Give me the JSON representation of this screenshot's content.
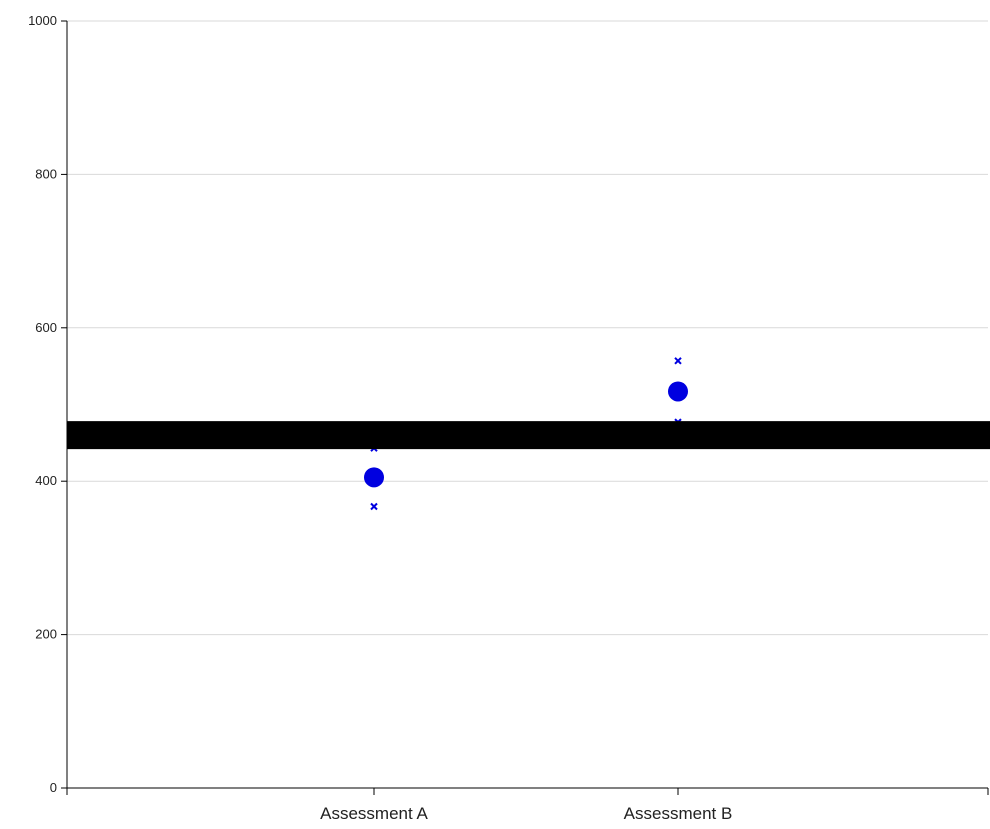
{
  "chart_data": {
    "type": "scatter",
    "categories": [
      "Assessment A",
      "Assessment B"
    ],
    "ylim": [
      0,
      1000
    ],
    "yticks": [
      0,
      200,
      400,
      600,
      800,
      1000
    ],
    "grid": true,
    "series": [
      {
        "role": "mean",
        "marker": "circle",
        "values": [
          405,
          517
        ]
      },
      {
        "role": "upper-bound",
        "marker": "x",
        "values": [
          443,
          557
        ]
      },
      {
        "role": "lower-bound",
        "marker": "x",
        "values": [
          367,
          477
        ]
      }
    ],
    "reference_line": {
      "y": 460
    }
  },
  "colors": {
    "marker": "#0000e0",
    "reference_line": "#000000",
    "grid": "#d9d9d9",
    "axis": "#000000"
  }
}
